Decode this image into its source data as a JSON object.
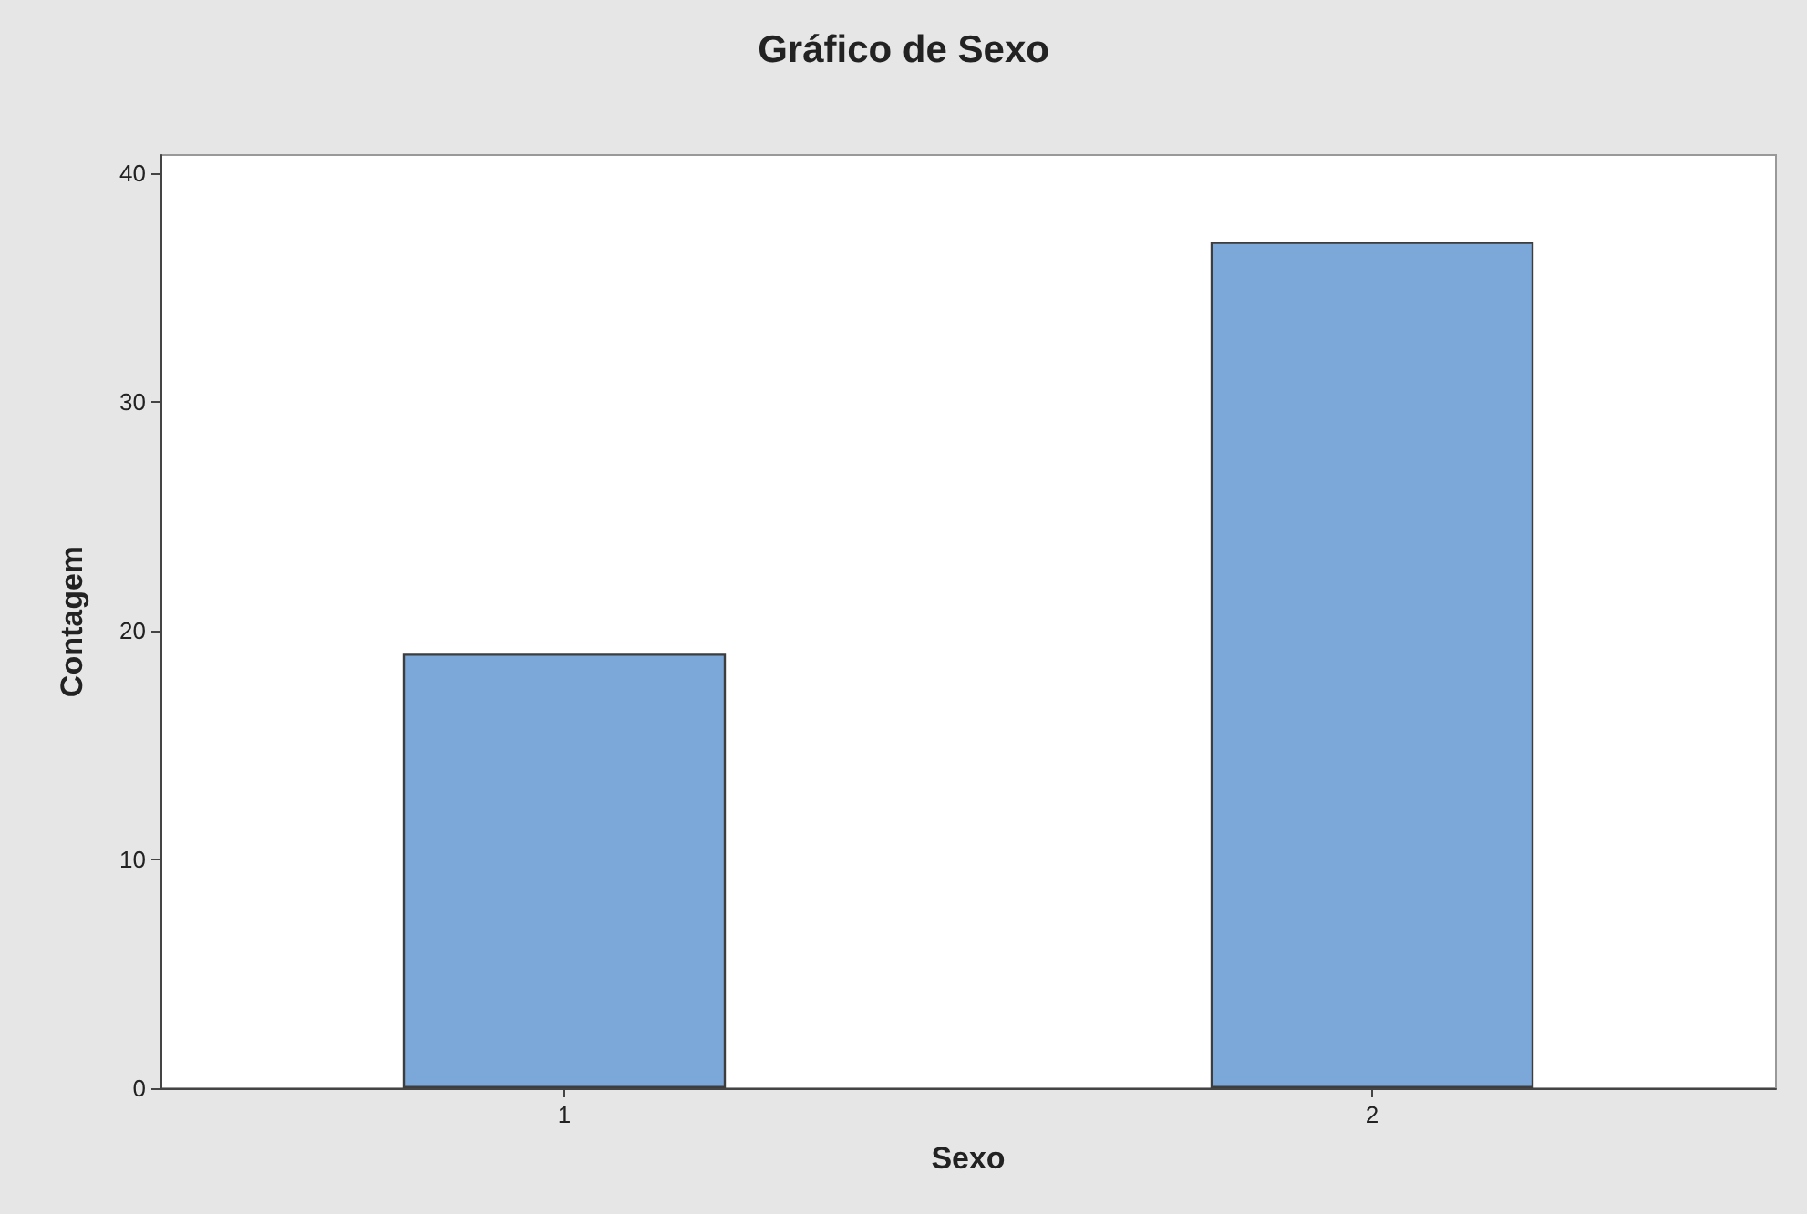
{
  "chart_data": {
    "type": "bar",
    "title": "Gráfico de Sexo",
    "xlabel": "Sexo",
    "ylabel": "Contagem",
    "categories": [
      "1",
      "2"
    ],
    "values": [
      19,
      37
    ],
    "color": "#7ba7d9",
    "ylim": [
      0,
      40.8
    ],
    "yticks": [
      0,
      10,
      20,
      30,
      40
    ],
    "grid": false
  }
}
